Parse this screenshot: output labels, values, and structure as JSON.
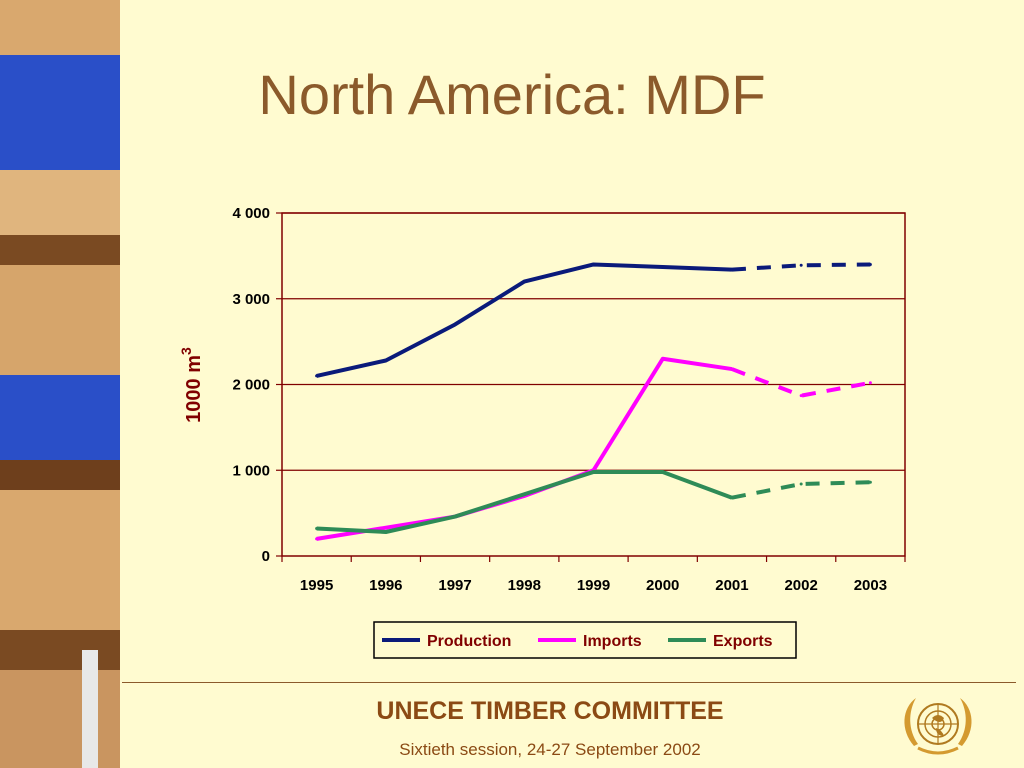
{
  "slide": {
    "title": "North America: MDF",
    "footer_org": "UNECE TIMBER COMMITTEE",
    "footer_session": "Sixtieth session, 24-27 September 2002",
    "emblem_icon": "un-emblem-icon"
  },
  "colors": {
    "background": "#FFFBD0",
    "title": "#8B5A2B",
    "axis_label": "#800000",
    "production": "#0A1A7A",
    "imports": "#FF00FF",
    "exports": "#2E8B57"
  },
  "chart_data": {
    "type": "line",
    "title": "",
    "xlabel": "",
    "ylabel": "1000 m",
    "ylabel_superscript": "3",
    "categories": [
      "1995",
      "1996",
      "1997",
      "1998",
      "1999",
      "2000",
      "2001",
      "2002",
      "2003"
    ],
    "ylim": [
      0,
      4000
    ],
    "yticks": [
      0,
      1000,
      2000,
      3000,
      4000
    ],
    "ytick_labels": [
      "0",
      "1 000",
      "2 000",
      "3 000",
      "4 000"
    ],
    "grid": "horizontal",
    "legend_position": "bottom",
    "forecast_from": "2001",
    "series": [
      {
        "name": "Production",
        "color": "#0A1A7A",
        "values": [
          2100,
          2280,
          2700,
          3200,
          3400,
          3370,
          3340,
          3390,
          3400
        ]
      },
      {
        "name": "Imports",
        "color": "#FF00FF",
        "values": [
          200,
          330,
          460,
          700,
          1000,
          2300,
          2180,
          1870,
          2020
        ]
      },
      {
        "name": "Exports",
        "color": "#2E8B57",
        "values": [
          320,
          280,
          460,
          720,
          980,
          980,
          680,
          840,
          860
        ]
      }
    ]
  }
}
